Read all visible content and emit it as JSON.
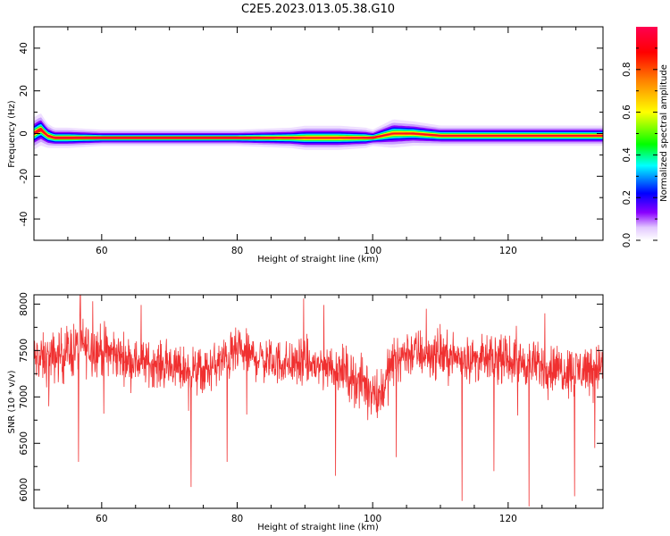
{
  "figure": {
    "title": "C2E5.2023.013.05.38.G10"
  },
  "chart_data": [
    {
      "type": "heatmap",
      "title": "C2E5.2023.013.05.38.G10",
      "xlabel": "Height of straight line (km)",
      "ylabel": "Frequency (Hz)",
      "xlim": [
        50,
        134
      ],
      "ylim": [
        -50,
        50
      ],
      "xticks": [
        60,
        80,
        100,
        120
      ],
      "yticks": [
        -40,
        -20,
        0,
        20,
        40
      ],
      "colorbar": {
        "label": "Normalized spectral amplitude",
        "range": [
          0.0,
          1.0
        ],
        "ticks": [
          0.0,
          0.2,
          0.4,
          0.6,
          0.8
        ],
        "colormap": "gist_rainbow_r",
        "ramp": [
          "#ffffff",
          "#8a00ff",
          "#0000ff",
          "#00ffff",
          "#00ff00",
          "#ffff00",
          "#ff8000",
          "#ff0000",
          "#ff0050"
        ]
      },
      "ridge": {
        "x": [
          50,
          51,
          52,
          53,
          55,
          60,
          70,
          80,
          88,
          90,
          95,
          99,
          100,
          103,
          106,
          110,
          120,
          130,
          134
        ],
        "freq": [
          0,
          2,
          -1,
          -2,
          -2,
          -2,
          -2,
          -2,
          -2,
          -2,
          -2,
          -2,
          -2,
          0,
          0,
          -1,
          -1,
          -1,
          -1
        ],
        "halfwidth": [
          4,
          4,
          3,
          2.5,
          2.5,
          2,
          2,
          2,
          2.5,
          3,
          3,
          2.5,
          2,
          3.5,
          3,
          2.5,
          2.5,
          2.5,
          2.5
        ],
        "core_halfwidth": [
          0.8,
          1,
          0.6,
          0.6,
          0.6,
          0.6,
          0.6,
          0.6,
          0.5,
          0.3,
          0.3,
          0.5,
          0.6,
          0.3,
          0.4,
          0.5,
          0.5,
          0.5,
          0.5
        ]
      }
    },
    {
      "type": "line",
      "xlabel": "Height of straight line (km)",
      "ylabel": "SNR (10 * v/v)",
      "xlim": [
        50,
        134
      ],
      "ylim": [
        5800,
        8100
      ],
      "xticks": [
        60,
        80,
        100,
        120
      ],
      "yticks": [
        6000,
        6500,
        7000,
        7500,
        8000
      ],
      "color": "#f03030",
      "envelope": {
        "x": [
          50,
          52,
          55,
          57,
          60,
          65,
          70,
          75,
          80,
          85,
          90,
          95,
          98,
          100,
          101,
          103,
          105,
          110,
          115,
          120,
          125,
          130,
          134
        ],
        "mean": [
          7400,
          7400,
          7480,
          7550,
          7500,
          7380,
          7330,
          7260,
          7480,
          7380,
          7350,
          7320,
          7150,
          7100,
          7000,
          7380,
          7480,
          7450,
          7400,
          7400,
          7330,
          7280,
          7350
        ],
        "spread": [
          230,
          230,
          250,
          260,
          230,
          200,
          200,
          210,
          210,
          200,
          220,
          220,
          230,
          260,
          250,
          220,
          230,
          210,
          200,
          200,
          210,
          230,
          230
        ]
      },
      "dips": [
        {
          "x": 52.2,
          "y": 6900
        },
        {
          "x": 56.6,
          "y": 6300
        },
        {
          "x": 60.3,
          "y": 6820
        },
        {
          "x": 72.8,
          "y": 6850
        },
        {
          "x": 73.2,
          "y": 6030
        },
        {
          "x": 78.5,
          "y": 6300
        },
        {
          "x": 81.4,
          "y": 6810
        },
        {
          "x": 94.5,
          "y": 6150
        },
        {
          "x": 99.3,
          "y": 6750
        },
        {
          "x": 103.5,
          "y": 6350
        },
        {
          "x": 113.2,
          "y": 5880
        },
        {
          "x": 117.9,
          "y": 6200
        },
        {
          "x": 121.4,
          "y": 6800
        },
        {
          "x": 123.1,
          "y": 5820
        },
        {
          "x": 129.8,
          "y": 5930
        },
        {
          "x": 132.8,
          "y": 6450
        }
      ],
      "peaks": [
        {
          "x": 56.8,
          "y": 8080
        },
        {
          "x": 58.7,
          "y": 8030
        },
        {
          "x": 65.8,
          "y": 7990
        },
        {
          "x": 89.8,
          "y": 8060
        },
        {
          "x": 92.8,
          "y": 7990
        },
        {
          "x": 107.9,
          "y": 7950
        },
        {
          "x": 125.4,
          "y": 7900
        }
      ]
    }
  ]
}
